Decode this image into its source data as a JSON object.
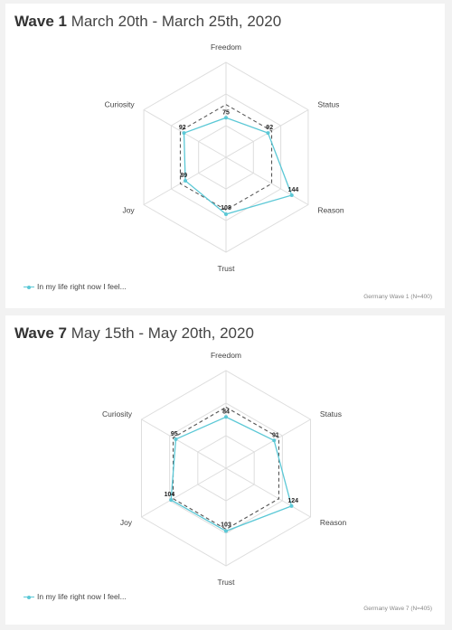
{
  "colors": {
    "series": "#5bc8d6",
    "baseline": "#555555",
    "grid": "#dddddd"
  },
  "chart_data": [
    {
      "type": "radar",
      "title_bold": "Wave 1",
      "title_rest": " March 20th - March 25th, 2020",
      "axes": [
        "Freedom",
        "Status",
        "Reason",
        "Trust",
        "Joy",
        "Curiosity"
      ],
      "series": [
        {
          "name": "In my life right now I feel...",
          "values": [
            75,
            92,
            144,
            108,
            89,
            92
          ],
          "style": "solid-with-markers"
        },
        {
          "values": [
            100,
            100,
            100,
            100,
            100,
            100
          ],
          "style": "dashed"
        }
      ],
      "range": [
        0,
        180
      ],
      "footnote": "Germany Wave 1 (N=400)"
    },
    {
      "type": "radar",
      "title_bold": "Wave 7",
      "title_rest": " May 15th - May 20th, 2020",
      "axes": [
        "Freedom",
        "Status",
        "Reason",
        "Trust",
        "Joy",
        "Curiosity"
      ],
      "series": [
        {
          "name": "In my life right now I feel...",
          "values": [
            84,
            91,
            124,
            103,
            104,
            95
          ],
          "style": "solid-with-markers"
        },
        {
          "values": [
            100,
            100,
            100,
            100,
            100,
            100
          ],
          "style": "dashed"
        }
      ],
      "range": [
        0,
        160
      ],
      "footnote": "Germany Wave 7 (N=405)"
    }
  ]
}
